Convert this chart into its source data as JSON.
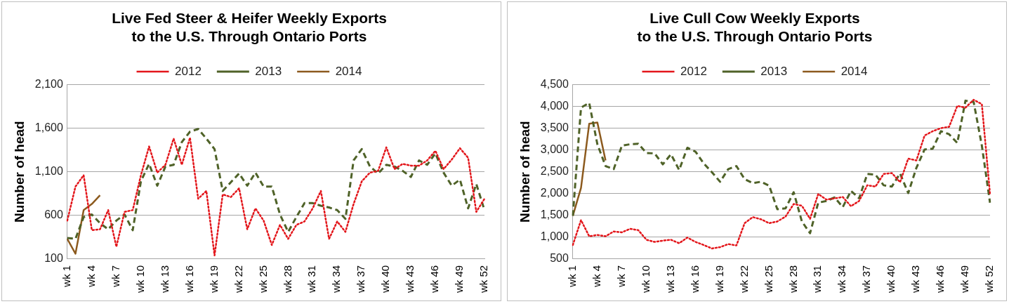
{
  "chart_data": [
    {
      "type": "line",
      "title": "Live Fed Steer & Heifer Weekly Exports\nto the U.S. Through Ontario Ports",
      "ylabel": "Number of head",
      "categories": [
        "wk 1",
        null,
        null,
        "wk 4",
        null,
        null,
        "wk 7",
        null,
        null,
        "wk 10",
        null,
        null,
        "wk 13",
        null,
        null,
        "wk 16",
        null,
        null,
        "wk 19",
        null,
        null,
        "wk 22",
        null,
        null,
        "wk 25",
        null,
        null,
        "wk 28",
        null,
        null,
        "wk 31",
        null,
        null,
        "wk 34",
        null,
        null,
        "wk 37",
        null,
        null,
        "wk 40",
        null,
        null,
        "wk 43",
        null,
        null,
        "wk 46",
        null,
        null,
        "wk 49",
        null,
        null,
        "wk 52"
      ],
      "ylim": [
        100,
        2100
      ],
      "yticks": [
        {
          "value": 100,
          "label": "100"
        },
        {
          "value": 600,
          "label": "600"
        },
        {
          "value": 1100,
          "label": "1,100"
        },
        {
          "value": 1600,
          "label": "1,600"
        },
        {
          "value": 2100,
          "label": "2,100"
        }
      ],
      "grid": "y",
      "legend": "top",
      "marker": "none",
      "series": [
        {
          "name": "2012",
          "color": "#e3161b",
          "line_style": "dotted",
          "values": [
            540,
            930,
            1060,
            430,
            440,
            660,
            240,
            640,
            660,
            1060,
            1390,
            1090,
            1180,
            1480,
            1180,
            1490,
            790,
            880,
            140,
            840,
            810,
            910,
            440,
            680,
            540,
            260,
            490,
            330,
            490,
            530,
            680,
            880,
            330,
            530,
            410,
            730,
            990,
            1090,
            1110,
            1380,
            1130,
            1190,
            1170,
            1170,
            1230,
            1340,
            1130,
            1240,
            1370,
            1260,
            640,
            790
          ]
        },
        {
          "name": "2013",
          "color": "#4f6228",
          "line_style": "dashed",
          "values": [
            340,
            330,
            580,
            610,
            510,
            440,
            540,
            610,
            430,
            990,
            1190,
            940,
            1160,
            1180,
            1440,
            1560,
            1590,
            1480,
            1360,
            880,
            980,
            1080,
            940,
            1090,
            930,
            930,
            610,
            410,
            580,
            740,
            740,
            710,
            690,
            660,
            560,
            1230,
            1360,
            1160,
            1080,
            1180,
            1160,
            1110,
            1040,
            1230,
            1180,
            1310,
            1090,
            940,
            1010,
            680,
            960,
            660
          ]
        },
        {
          "name": "2014",
          "color": "#8c5a1e",
          "line_style": "solid",
          "values": [
            330,
            160,
            660,
            730,
            830,
            null,
            null,
            null,
            null,
            null,
            null,
            null,
            null,
            null,
            null,
            null,
            null,
            null,
            null,
            null,
            null,
            null,
            null,
            null,
            null,
            null,
            null,
            null,
            null,
            null,
            null,
            null,
            null,
            null,
            null,
            null,
            null,
            null,
            null,
            null,
            null,
            null,
            null,
            null,
            null,
            null,
            null,
            null,
            null,
            null,
            null,
            null
          ]
        }
      ]
    },
    {
      "type": "line",
      "title": "Live Cull Cow Weekly Exports\nto the U.S. Through Ontario Ports",
      "ylabel": "Number of head",
      "categories": [
        "wk 1",
        null,
        null,
        "wk 4",
        null,
        null,
        "wk 7",
        null,
        null,
        "wk 10",
        null,
        null,
        "wk 13",
        null,
        null,
        "wk 16",
        null,
        null,
        "wk 19",
        null,
        null,
        "wk 22",
        null,
        null,
        "wk 25",
        null,
        null,
        "wk 28",
        null,
        null,
        "wk 31",
        null,
        null,
        "wk 34",
        null,
        null,
        "wk 37",
        null,
        null,
        "wk 40",
        null,
        null,
        "wk 43",
        null,
        null,
        "wk 46",
        null,
        null,
        "wk 49",
        null,
        null,
        "wk 52"
      ],
      "ylim": [
        500,
        4500
      ],
      "yticks": [
        {
          "value": 500,
          "label": "500"
        },
        {
          "value": 1000,
          "label": "1,000"
        },
        {
          "value": 1500,
          "label": "1,500"
        },
        {
          "value": 2000,
          "label": "2,000"
        },
        {
          "value": 2500,
          "label": "2,500"
        },
        {
          "value": 3000,
          "label": "3,000"
        },
        {
          "value": 3500,
          "label": "3,500"
        },
        {
          "value": 4000,
          "label": "4,000"
        },
        {
          "value": 4500,
          "label": "4,500"
        }
      ],
      "grid": "y",
      "legend": "top",
      "marker": "none",
      "series": [
        {
          "name": "2012",
          "color": "#e3161b",
          "line_style": "dotted",
          "values": [
            820,
            1390,
            1020,
            1050,
            1020,
            1130,
            1110,
            1190,
            1160,
            940,
            890,
            920,
            940,
            860,
            990,
            890,
            820,
            740,
            770,
            840,
            810,
            1320,
            1460,
            1410,
            1320,
            1360,
            1470,
            1760,
            1720,
            1420,
            1990,
            1860,
            1890,
            1920,
            1710,
            1830,
            2190,
            2160,
            2450,
            2470,
            2260,
            2800,
            2760,
            3330,
            3430,
            3500,
            3530,
            4010,
            3970,
            4150,
            4050,
            1990
          ]
        },
        {
          "name": "2013",
          "color": "#4f6228",
          "line_style": "dashed",
          "values": [
            1490,
            3970,
            4080,
            3130,
            2630,
            2560,
            3100,
            3130,
            3140,
            2930,
            2920,
            2670,
            2900,
            2540,
            3050,
            2960,
            2690,
            2490,
            2270,
            2560,
            2630,
            2330,
            2240,
            2270,
            2180,
            1640,
            1660,
            2030,
            1360,
            1090,
            1790,
            1830,
            1910,
            1690,
            2060,
            1890,
            2450,
            2430,
            2190,
            2160,
            2460,
            2010,
            2590,
            3010,
            3030,
            3430,
            3360,
            3160,
            4130,
            4100,
            3100,
            1790
          ]
        },
        {
          "name": "2014",
          "color": "#8c5a1e",
          "line_style": "solid",
          "values": [
            1490,
            2130,
            3600,
            3630,
            2760,
            null,
            null,
            null,
            null,
            null,
            null,
            null,
            null,
            null,
            null,
            null,
            null,
            null,
            null,
            null,
            null,
            null,
            null,
            null,
            null,
            null,
            null,
            null,
            null,
            null,
            null,
            null,
            null,
            null,
            null,
            null,
            null,
            null,
            null,
            null,
            null,
            null,
            null,
            null,
            null,
            null,
            null,
            null,
            null,
            null,
            null,
            null
          ]
        }
      ]
    }
  ]
}
